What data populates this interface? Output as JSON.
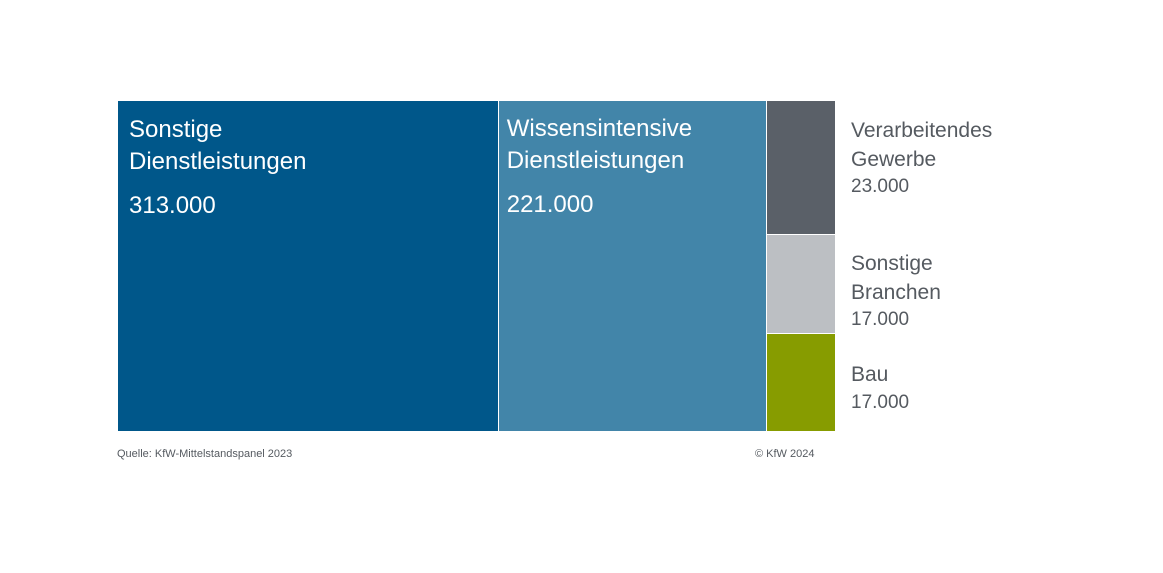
{
  "chart_data": {
    "type": "treemap",
    "categories": [
      "Sonstige Dienstleistungen",
      "Wissensintensive Dienstleistungen",
      "Verarbeitendes Gewerbe",
      "Sonstige Branchen",
      "Bau"
    ],
    "values": [
      313000,
      221000,
      23000,
      17000,
      17000
    ],
    "value_labels": [
      "313.000",
      "221.000",
      "23.000",
      "17.000",
      "17.000"
    ],
    "name_lines": [
      [
        "Sonstige",
        "Dienstleistungen"
      ],
      [
        "Wissensintensive",
        "Dienstleistungen"
      ],
      [
        "Verarbeitendes",
        "Gewerbe"
      ],
      [
        "Sonstige",
        "Branchen"
      ],
      [
        "Bau"
      ]
    ],
    "colors": [
      "#00578a",
      "#4285a9",
      "#5a6068",
      "#bcbfc3",
      "#879c00"
    ]
  },
  "footer": {
    "source": "Quelle: KfW-Mittelstandspanel 2023",
    "copyright": "© KfW 2024"
  }
}
